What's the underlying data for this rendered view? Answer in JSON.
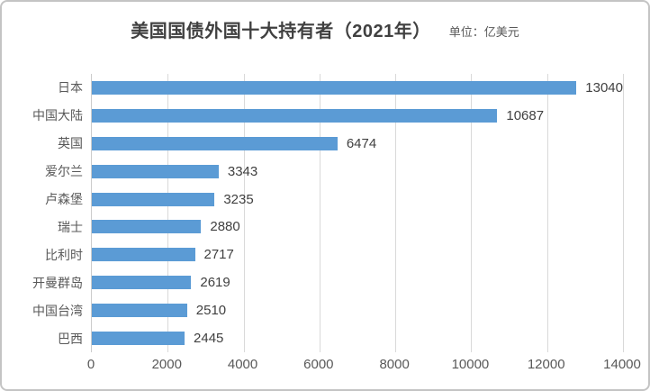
{
  "title": "美国国债外国十大持有者（2021年）",
  "unit_label": "单位：亿美元",
  "colors": {
    "bar": "#5B9BD5",
    "gridline": "#D9D9D9",
    "axis_line": "#CCCCCC",
    "border": "#C4C4C4",
    "title_text": "#404040",
    "label_text": "#595959",
    "value_text": "#404040"
  },
  "chart_data": {
    "type": "bar",
    "orientation": "horizontal",
    "title": "美国国债外国十大持有者（2021年）",
    "subtitle": "单位：亿美元",
    "categories": [
      "日本",
      "中国大陆",
      "英国",
      "爱尔兰",
      "卢森堡",
      "瑞士",
      "比利时",
      "开曼群岛",
      "中国台湾",
      "巴西"
    ],
    "values": [
      13040,
      10687,
      6474,
      3343,
      3235,
      2880,
      2717,
      2619,
      2510,
      2445
    ],
    "xlabel": "",
    "ylabel": "",
    "xlim": [
      0,
      14000
    ],
    "xticks": [
      0,
      2000,
      4000,
      6000,
      8000,
      10000,
      12000,
      14000
    ],
    "grid": true,
    "legend": false,
    "data_labels": true
  }
}
